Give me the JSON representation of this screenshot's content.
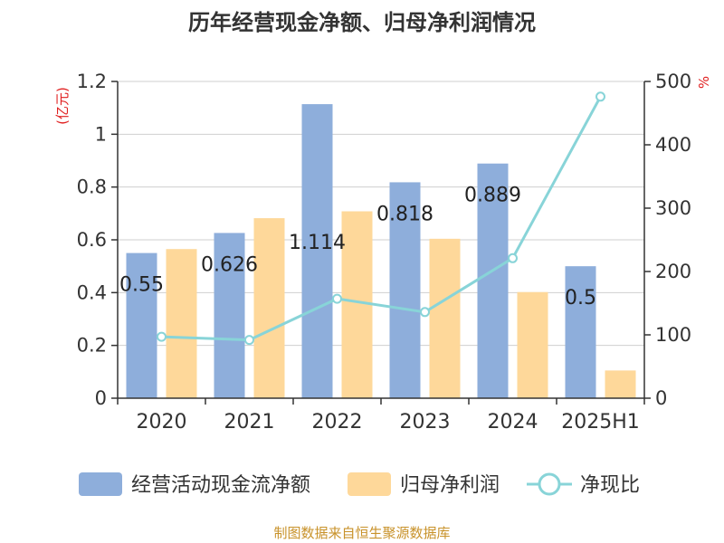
{
  "title": "历年经营现金净额、归母净利润情况",
  "source": "制图数据来自恒生聚源数据库",
  "left_unit": "(亿元)",
  "right_unit": "%",
  "colors": {
    "bar1": "#8eaedb",
    "bar2": "#fed89a",
    "line": "#88d4d8"
  },
  "chart_data": {
    "type": "bar",
    "categories": [
      "2020",
      "2021",
      "2022",
      "2023",
      "2024",
      "2025H1"
    ],
    "series": [
      {
        "name": "经营活动现金流净额",
        "axis": "left",
        "type": "bar",
        "values": [
          0.55,
          0.626,
          1.114,
          0.818,
          0.889,
          0.5
        ]
      },
      {
        "name": "归母净利润",
        "axis": "left",
        "type": "bar",
        "values": [
          0.565,
          0.682,
          0.708,
          0.604,
          0.402,
          0.105
        ]
      },
      {
        "name": "净现比",
        "axis": "right",
        "type": "line",
        "values": [
          97,
          92,
          157,
          136,
          221,
          476
        ]
      }
    ],
    "data_labels": [
      "0.55",
      "0.626",
      "1.114",
      "0.818",
      "0.889",
      "0.5"
    ],
    "ylim_left": [
      0,
      1.2
    ],
    "yticks_left": [
      "0",
      "0.2",
      "0.4",
      "0.6",
      "0.8",
      "1",
      "1.2"
    ],
    "ylim_right": [
      0,
      500
    ],
    "yticks_right": [
      "0",
      "100",
      "200",
      "300",
      "400",
      "500"
    ],
    "grid": true,
    "legend": "bottom"
  }
}
